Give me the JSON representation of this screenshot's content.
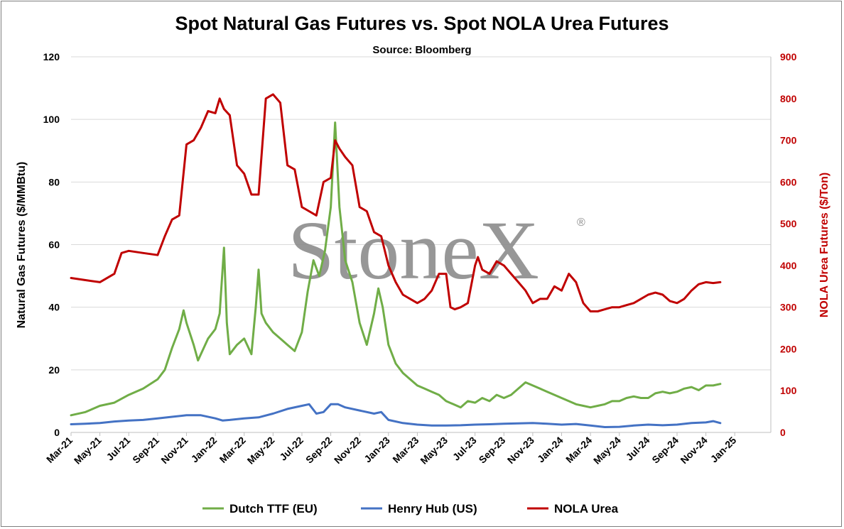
{
  "chart_data": {
    "type": "line",
    "title": "Spot Natural Gas Futures vs. Spot NOLA Urea Futures",
    "subtitle": "Source: Bloomberg",
    "watermark": "StoneX",
    "watermark_mark": "®",
    "y_left": {
      "label": "Natural Gas Futures ($/MMBtu)",
      "ticks": [
        "0",
        "20",
        "40",
        "60",
        "80",
        "100",
        "120"
      ],
      "range": [
        0,
        120
      ],
      "color": "#000000"
    },
    "y_right": {
      "label": "NOLA Urea Futures ($/Ton)",
      "ticks": [
        "0",
        "100",
        "200",
        "300",
        "400",
        "500",
        "600",
        "700",
        "800",
        "900"
      ],
      "range": [
        0,
        900
      ],
      "color": "#c00000"
    },
    "x_ticks": [
      "Mar-21",
      "May-21",
      "Jul-21",
      "Sep-21",
      "Nov-21",
      "Jan-22",
      "Mar-22",
      "May-22",
      "Jul-22",
      "Sep-22",
      "Nov-22",
      "Jan-23",
      "Mar-23",
      "May-23",
      "Jul-23",
      "Sep-23",
      "Nov-23",
      "Jan-24",
      "Mar-24",
      "May-24",
      "Jul-24",
      "Sep-24",
      "Nov-24",
      "Jan-25"
    ],
    "x_range": [
      0,
      48.5
    ],
    "grid": "horizontal",
    "legend_position": "bottom",
    "series": [
      {
        "name": "Dutch TTF (EU)",
        "axis": "left",
        "color": "#70ad47",
        "points": [
          [
            0,
            5.5
          ],
          [
            1,
            6.5
          ],
          [
            2,
            8.5
          ],
          [
            3,
            9.5
          ],
          [
            4,
            12
          ],
          [
            5,
            14
          ],
          [
            6,
            17
          ],
          [
            6.5,
            20
          ],
          [
            7,
            27
          ],
          [
            7.5,
            33
          ],
          [
            7.8,
            39
          ],
          [
            8,
            35
          ],
          [
            8.5,
            28
          ],
          [
            8.8,
            23
          ],
          [
            9.2,
            27
          ],
          [
            9.5,
            30
          ],
          [
            10,
            33
          ],
          [
            10.3,
            38
          ],
          [
            10.6,
            59
          ],
          [
            10.8,
            35
          ],
          [
            11,
            25
          ],
          [
            11.5,
            28
          ],
          [
            12,
            30
          ],
          [
            12.5,
            25
          ],
          [
            12.8,
            40
          ],
          [
            13,
            52
          ],
          [
            13.2,
            38
          ],
          [
            13.5,
            35
          ],
          [
            14,
            32
          ],
          [
            14.5,
            30
          ],
          [
            15,
            28
          ],
          [
            15.5,
            26
          ],
          [
            16,
            32
          ],
          [
            16.4,
            45
          ],
          [
            16.8,
            55
          ],
          [
            17.2,
            50
          ],
          [
            17.6,
            58
          ],
          [
            18,
            72
          ],
          [
            18.3,
            99
          ],
          [
            18.6,
            72
          ],
          [
            19,
            55
          ],
          [
            19.5,
            48
          ],
          [
            20,
            35
          ],
          [
            20.5,
            28
          ],
          [
            21,
            38
          ],
          [
            21.3,
            46
          ],
          [
            21.6,
            40
          ],
          [
            22,
            28
          ],
          [
            22.5,
            22
          ],
          [
            23,
            19
          ],
          [
            23.5,
            17
          ],
          [
            24,
            15
          ],
          [
            24.5,
            14
          ],
          [
            25,
            13
          ],
          [
            25.5,
            12
          ],
          [
            26,
            10
          ],
          [
            26.5,
            9
          ],
          [
            27,
            8
          ],
          [
            27.5,
            10
          ],
          [
            28,
            9.5
          ],
          [
            28.5,
            11
          ],
          [
            29,
            10
          ],
          [
            29.5,
            12
          ],
          [
            30,
            11
          ],
          [
            30.5,
            12
          ],
          [
            31,
            14
          ],
          [
            31.5,
            16
          ],
          [
            32,
            15
          ],
          [
            32.5,
            14
          ],
          [
            33,
            13
          ],
          [
            33.5,
            12
          ],
          [
            34,
            11
          ],
          [
            34.5,
            10
          ],
          [
            35,
            9
          ],
          [
            35.5,
            8.5
          ],
          [
            36,
            8
          ],
          [
            36.5,
            8.5
          ],
          [
            37,
            9
          ],
          [
            37.5,
            10
          ],
          [
            38,
            10
          ],
          [
            38.5,
            11
          ],
          [
            39,
            11.5
          ],
          [
            39.5,
            11
          ],
          [
            40,
            11
          ],
          [
            40.5,
            12.5
          ],
          [
            41,
            13
          ],
          [
            41.5,
            12.5
          ],
          [
            42,
            13
          ],
          [
            42.5,
            14
          ],
          [
            43,
            14.5
          ],
          [
            43.5,
            13.5
          ],
          [
            44,
            15
          ],
          [
            44.5,
            15
          ],
          [
            45,
            15.5
          ]
        ]
      },
      {
        "name": "Henry Hub (US)",
        "axis": "left",
        "color": "#4472c4",
        "points": [
          [
            0,
            2.6
          ],
          [
            1,
            2.8
          ],
          [
            2,
            3
          ],
          [
            3,
            3.5
          ],
          [
            4,
            3.8
          ],
          [
            5,
            4
          ],
          [
            6,
            4.5
          ],
          [
            7,
            5
          ],
          [
            8,
            5.5
          ],
          [
            9,
            5.5
          ],
          [
            10,
            4.5
          ],
          [
            10.5,
            3.8
          ],
          [
            11,
            4
          ],
          [
            12,
            4.5
          ],
          [
            13,
            4.8
          ],
          [
            14,
            6
          ],
          [
            15,
            7.5
          ],
          [
            16,
            8.5
          ],
          [
            16.5,
            9
          ],
          [
            17,
            6
          ],
          [
            17.5,
            6.5
          ],
          [
            18,
            9
          ],
          [
            18.5,
            9
          ],
          [
            19,
            8
          ],
          [
            20,
            7
          ],
          [
            21,
            6
          ],
          [
            21.5,
            6.5
          ],
          [
            22,
            4
          ],
          [
            23,
            3
          ],
          [
            24,
            2.5
          ],
          [
            25,
            2.2
          ],
          [
            26,
            2.2
          ],
          [
            27,
            2.3
          ],
          [
            28,
            2.5
          ],
          [
            29,
            2.6
          ],
          [
            30,
            2.8
          ],
          [
            31,
            2.9
          ],
          [
            32,
            3
          ],
          [
            33,
            2.8
          ],
          [
            34,
            2.5
          ],
          [
            35,
            2.7
          ],
          [
            36,
            2.2
          ],
          [
            37,
            1.7
          ],
          [
            38,
            1.8
          ],
          [
            39,
            2.2
          ],
          [
            40,
            2.5
          ],
          [
            41,
            2.3
          ],
          [
            42,
            2.5
          ],
          [
            43,
            3
          ],
          [
            44,
            3.2
          ],
          [
            44.5,
            3.6
          ],
          [
            45,
            3
          ]
        ]
      },
      {
        "name": "NOLA Urea",
        "axis": "right",
        "color": "#c00000",
        "points": [
          [
            0,
            370
          ],
          [
            1,
            365
          ],
          [
            2,
            360
          ],
          [
            3,
            380
          ],
          [
            3.5,
            430
          ],
          [
            4,
            435
          ],
          [
            5,
            430
          ],
          [
            6,
            425
          ],
          [
            6.5,
            470
          ],
          [
            7,
            510
          ],
          [
            7.5,
            520
          ],
          [
            8,
            690
          ],
          [
            8.5,
            700
          ],
          [
            9,
            730
          ],
          [
            9.5,
            770
          ],
          [
            10,
            765
          ],
          [
            10.3,
            800
          ],
          [
            10.6,
            775
          ],
          [
            11,
            760
          ],
          [
            11.5,
            640
          ],
          [
            12,
            620
          ],
          [
            12.5,
            570
          ],
          [
            13,
            570
          ],
          [
            13.5,
            800
          ],
          [
            14,
            810
          ],
          [
            14.5,
            790
          ],
          [
            15,
            640
          ],
          [
            15.5,
            630
          ],
          [
            16,
            540
          ],
          [
            16.5,
            530
          ],
          [
            17,
            520
          ],
          [
            17.5,
            600
          ],
          [
            18,
            610
          ],
          [
            18.3,
            700
          ],
          [
            18.6,
            680
          ],
          [
            19,
            660
          ],
          [
            19.5,
            640
          ],
          [
            20,
            540
          ],
          [
            20.5,
            530
          ],
          [
            21,
            480
          ],
          [
            21.5,
            470
          ],
          [
            22,
            400
          ],
          [
            22.5,
            360
          ],
          [
            23,
            330
          ],
          [
            23.5,
            320
          ],
          [
            24,
            310
          ],
          [
            24.5,
            320
          ],
          [
            25,
            340
          ],
          [
            25.5,
            380
          ],
          [
            26,
            380
          ],
          [
            26.3,
            300
          ],
          [
            26.6,
            295
          ],
          [
            27,
            300
          ],
          [
            27.5,
            310
          ],
          [
            28,
            400
          ],
          [
            28.2,
            420
          ],
          [
            28.5,
            390
          ],
          [
            29,
            380
          ],
          [
            29.5,
            410
          ],
          [
            30,
            400
          ],
          [
            30.5,
            380
          ],
          [
            31,
            360
          ],
          [
            31.5,
            340
          ],
          [
            32,
            310
          ],
          [
            32.5,
            320
          ],
          [
            33,
            320
          ],
          [
            33.5,
            350
          ],
          [
            34,
            340
          ],
          [
            34.5,
            380
          ],
          [
            35,
            360
          ],
          [
            35.5,
            310
          ],
          [
            36,
            290
          ],
          [
            36.5,
            290
          ],
          [
            37,
            295
          ],
          [
            37.5,
            300
          ],
          [
            38,
            300
          ],
          [
            38.5,
            305
          ],
          [
            39,
            310
          ],
          [
            39.5,
            320
          ],
          [
            40,
            330
          ],
          [
            40.5,
            335
          ],
          [
            41,
            330
          ],
          [
            41.5,
            315
          ],
          [
            42,
            310
          ],
          [
            42.5,
            320
          ],
          [
            43,
            340
          ],
          [
            43.5,
            355
          ],
          [
            44,
            360
          ],
          [
            44.5,
            358
          ],
          [
            45,
            360
          ]
        ]
      }
    ]
  }
}
